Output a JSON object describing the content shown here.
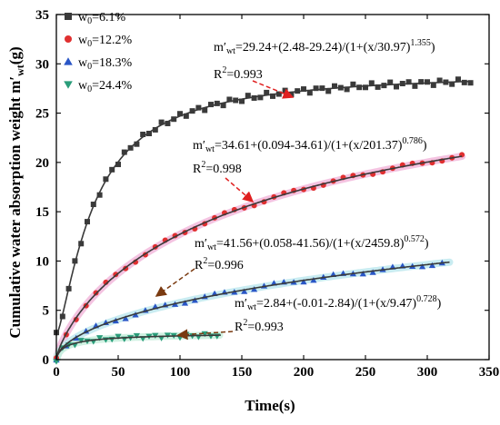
{
  "chart_data": {
    "type": "scatter",
    "title": "",
    "xlabel": "Time(s)",
    "ylabel_main": "Cumulative water absorption weight m",
    "ylabel_prime": "′",
    "ylabel_sub": "wt",
    "ylabel_unit": "(g)",
    "xlim": [
      0,
      350
    ],
    "ylim": [
      0,
      35
    ],
    "x_ticks": [
      "0",
      "50",
      "100",
      "150",
      "200",
      "250",
      "300",
      "350"
    ],
    "y_ticks": [
      "0",
      "5",
      "10",
      "15",
      "20",
      "25",
      "30",
      "35"
    ],
    "legend_position": "top-left",
    "series": [
      {
        "name_prefix": "w",
        "name_sub": "0",
        "name_suffix": "=6.1%",
        "marker": "square",
        "color": "#3a3a3a",
        "fit": {
          "a": 29.24,
          "b": 2.48,
          "x0": 30.97,
          "p": 1.355,
          "x_end": 335
        },
        "x_start": 0,
        "x_step": 5,
        "x_end": 335,
        "equation": {
          "lhs": "m′",
          "lhs_sub": "wt",
          "body": "=29.24+(2.48-29.24)/(1+(x/30.97)",
          "exp": "1.355",
          "tail": ")"
        },
        "r2": {
          "prefix": "R",
          "sup": "2",
          "value": "=0.993"
        }
      },
      {
        "name_prefix": "w",
        "name_sub": "0",
        "name_suffix": "=12.2%",
        "marker": "circle",
        "color": "#e03030",
        "fit": {
          "a": 34.61,
          "b": 0.094,
          "x0": 201.37,
          "p": 0.786,
          "x_end": 328
        },
        "x_start": 0,
        "x_step": 8,
        "x_end": 328,
        "equation": {
          "lhs": "m′",
          "lhs_sub": "wt",
          "body": "=34.61+(0.094-34.61)/(1+(x/201.37)",
          "exp": "0.786",
          "tail": ")"
        },
        "r2": {
          "prefix": "R",
          "sup": "2",
          "value": "=0.998"
        }
      },
      {
        "name_prefix": "w",
        "name_sub": "0",
        "name_suffix": "=18.3%",
        "marker": "triangle-up",
        "color": "#2a56c6",
        "fit": {
          "a": 41.56,
          "b": 0.058,
          "x0": 2459.8,
          "p": 0.572,
          "x_end": 318
        },
        "x_start": 0,
        "x_step": 8,
        "x_end": 318,
        "equation": {
          "lhs": "m′",
          "lhs_sub": "wt",
          "body": "=41.56+(0.058-41.56)/(1+(x/2459.8)",
          "exp": "0.572",
          "tail": ")"
        },
        "r2": {
          "prefix": "R",
          "sup": "2",
          "value": "=0.996"
        }
      },
      {
        "name_prefix": "w",
        "name_sub": "0",
        "name_suffix": "=24.4%",
        "marker": "triangle-down",
        "color": "#2a9d7a",
        "fit": {
          "a": 2.84,
          "b": -0.01,
          "x0": 9.47,
          "p": 0.728,
          "x_end": 133
        },
        "x_start": 0,
        "x_step": 5,
        "x_end": 133,
        "equation": {
          "lhs": "m′",
          "lhs_sub": "wt",
          "body": "=2.84+(-0.01-2.84)/(1+(x/9.47)",
          "exp": "0.728",
          "tail": ")"
        },
        "r2": {
          "prefix": "R",
          "sup": "2",
          "value": "=0.993"
        }
      }
    ]
  }
}
